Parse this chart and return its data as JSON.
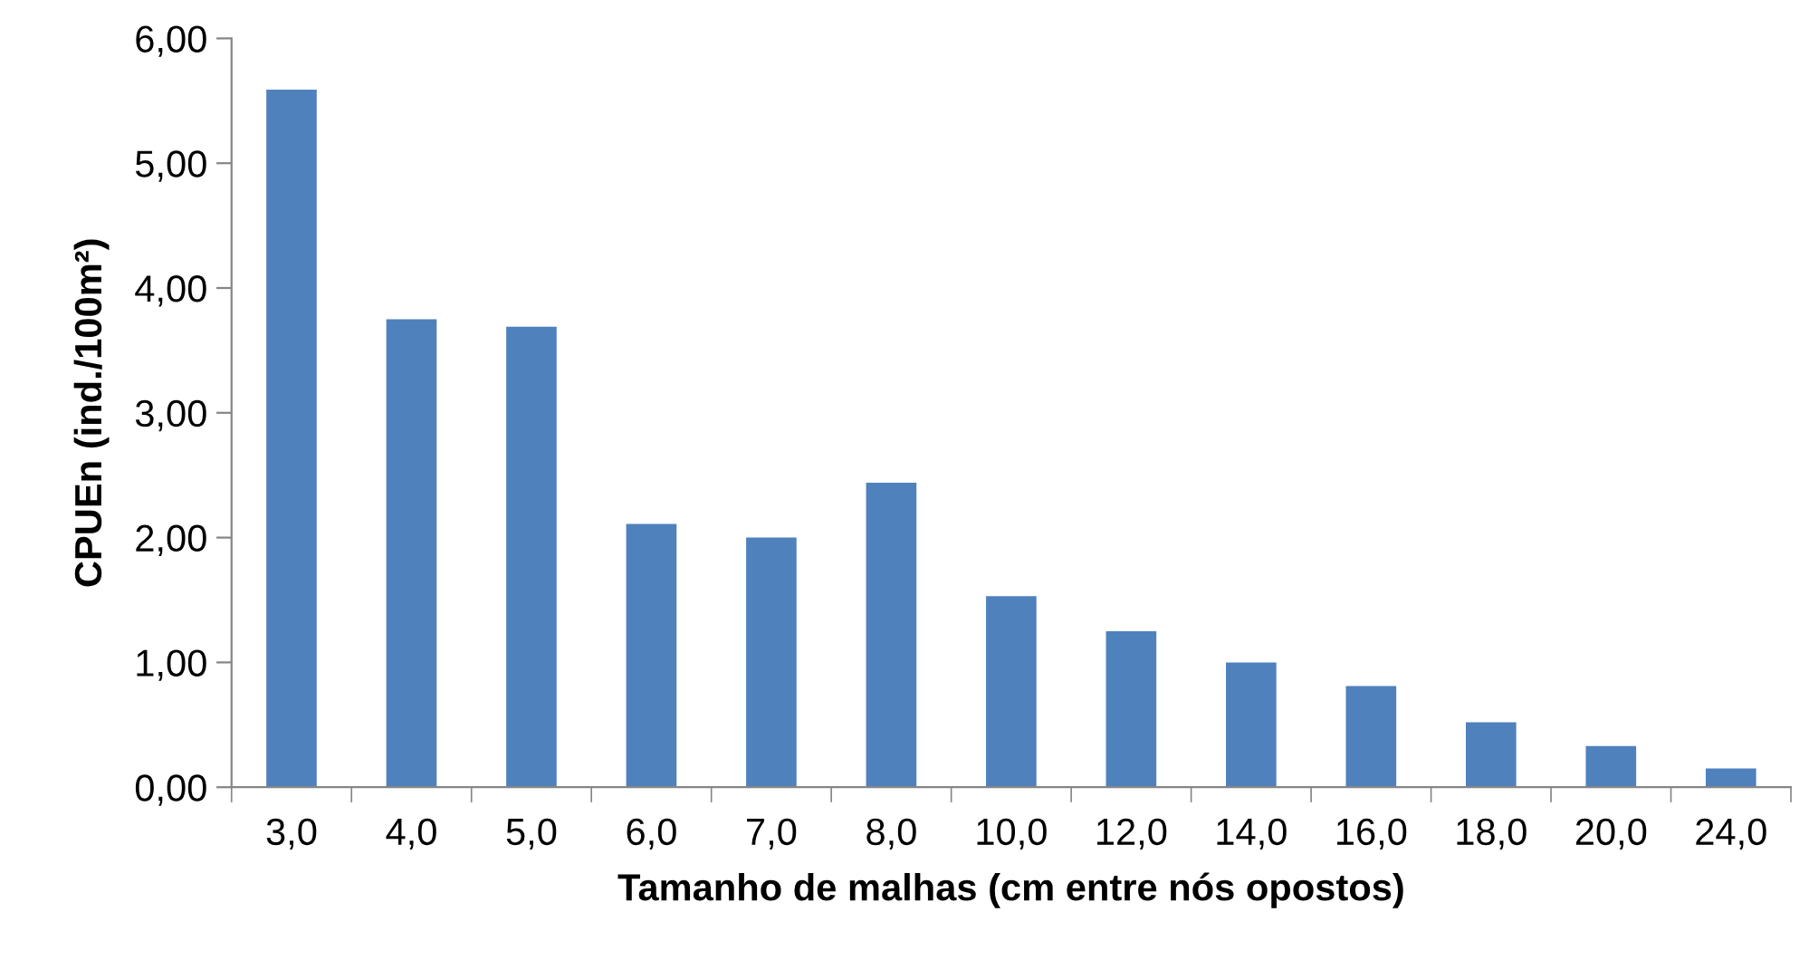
{
  "chart_data": {
    "type": "bar",
    "xlabel": "Tamanho de malhas (cm entre nós opostos)",
    "ylabel": "CPUEn (ind./100m²)",
    "categories": [
      "3,0",
      "4,0",
      "5,0",
      "6,0",
      "7,0",
      "8,0",
      "10,0",
      "12,0",
      "14,0",
      "16,0",
      "18,0",
      "20,0",
      "24,0"
    ],
    "values": [
      5.59,
      3.75,
      3.69,
      2.11,
      2.0,
      2.44,
      1.53,
      1.25,
      1.0,
      0.81,
      0.52,
      0.33,
      0.15
    ],
    "color": "#4f81bd",
    "ylim": [
      0,
      6
    ],
    "yticks": [
      {
        "value": 0,
        "label": "0,00"
      },
      {
        "value": 1,
        "label": "1,00"
      },
      {
        "value": 2,
        "label": "2,00"
      },
      {
        "value": 3,
        "label": "3,00"
      },
      {
        "value": 4,
        "label": "4,00"
      },
      {
        "value": 5,
        "label": "5,00"
      },
      {
        "value": 6,
        "label": "6,00"
      }
    ],
    "grid": false,
    "legend": false
  }
}
